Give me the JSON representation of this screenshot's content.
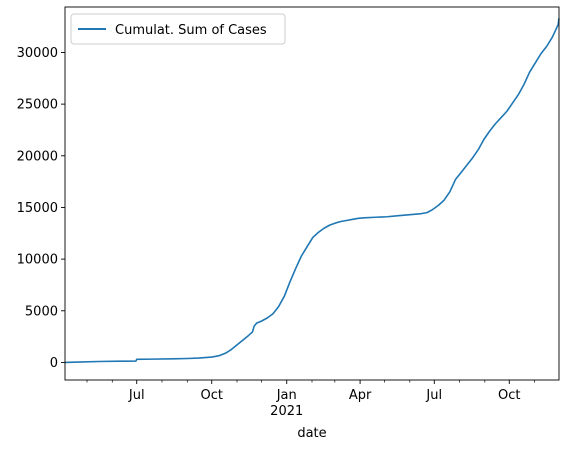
{
  "chart_data": {
    "type": "line",
    "title": "",
    "xlabel": "date",
    "ylabel": "",
    "grid": false,
    "legend_position": "upper-left",
    "x_range": [
      "2020-04-04",
      "2021-12-01"
    ],
    "ylim": [
      -1700,
      34400
    ],
    "x_ticks": [
      {
        "date": "2020-07-01",
        "label": "Jul"
      },
      {
        "date": "2020-10-01",
        "label": "Oct"
      },
      {
        "date": "2021-01-01",
        "label": "Jan"
      },
      {
        "date": "2021-04-01",
        "label": "Apr"
      },
      {
        "date": "2021-07-01",
        "label": "Jul"
      },
      {
        "date": "2021-10-01",
        "label": "Oct"
      }
    ],
    "x_minor_ticks": [
      "2020-04-01",
      "2020-05-01",
      "2020-06-01",
      "2020-08-01",
      "2020-09-01",
      "2020-11-01",
      "2020-12-01",
      "2021-02-01",
      "2021-03-01",
      "2021-05-01",
      "2021-06-01",
      "2021-08-01",
      "2021-09-01",
      "2021-11-01"
    ],
    "x_sublabel": {
      "date": "2021-01-01",
      "label": "2021"
    },
    "y_ticks": [
      0,
      5000,
      10000,
      15000,
      20000,
      25000,
      30000
    ],
    "series": [
      {
        "name": "Cumulat. Sum of Cases",
        "color": "#1f77b4",
        "x": [
          "2020-04-04",
          "2020-04-20",
          "2020-05-15",
          "2020-06-10",
          "2020-06-30",
          "2020-07-01",
          "2020-07-20",
          "2020-08-15",
          "2020-09-01",
          "2020-09-15",
          "2020-10-01",
          "2020-10-10",
          "2020-10-18",
          "2020-10-25",
          "2020-11-01",
          "2020-11-08",
          "2020-11-15",
          "2020-11-20",
          "2020-11-22",
          "2020-11-25",
          "2020-12-01",
          "2020-12-08",
          "2020-12-15",
          "2020-12-22",
          "2020-12-29",
          "2021-01-05",
          "2021-01-12",
          "2021-01-19",
          "2021-01-26",
          "2021-02-02",
          "2021-02-09",
          "2021-02-16",
          "2021-02-23",
          "2021-03-02",
          "2021-03-09",
          "2021-03-16",
          "2021-03-23",
          "2021-03-30",
          "2021-04-06",
          "2021-04-20",
          "2021-05-04",
          "2021-05-18",
          "2021-06-01",
          "2021-06-08",
          "2021-06-15",
          "2021-06-22",
          "2021-06-29",
          "2021-07-06",
          "2021-07-13",
          "2021-07-20",
          "2021-07-27",
          "2021-08-03",
          "2021-08-10",
          "2021-08-17",
          "2021-08-24",
          "2021-08-31",
          "2021-09-07",
          "2021-09-14",
          "2021-09-21",
          "2021-09-28",
          "2021-10-05",
          "2021-10-12",
          "2021-10-19",
          "2021-10-26",
          "2021-11-02",
          "2021-11-09",
          "2021-11-16",
          "2021-11-23",
          "2021-11-30",
          "2021-12-01"
        ],
        "values": [
          0,
          40,
          90,
          120,
          130,
          300,
          320,
          350,
          380,
          420,
          520,
          650,
          900,
          1250,
          1700,
          2150,
          2600,
          2950,
          3500,
          3800,
          4000,
          4300,
          4700,
          5400,
          6400,
          7800,
          9100,
          10300,
          11200,
          12100,
          12600,
          13000,
          13300,
          13500,
          13650,
          13750,
          13850,
          13950,
          14000,
          14050,
          14100,
          14200,
          14300,
          14350,
          14400,
          14500,
          14800,
          15200,
          15700,
          16500,
          17700,
          18400,
          19100,
          19800,
          20600,
          21600,
          22400,
          23100,
          23700,
          24300,
          25100,
          25900,
          26900,
          28100,
          29000,
          29900,
          30600,
          31500,
          32700,
          33300
        ]
      }
    ]
  }
}
